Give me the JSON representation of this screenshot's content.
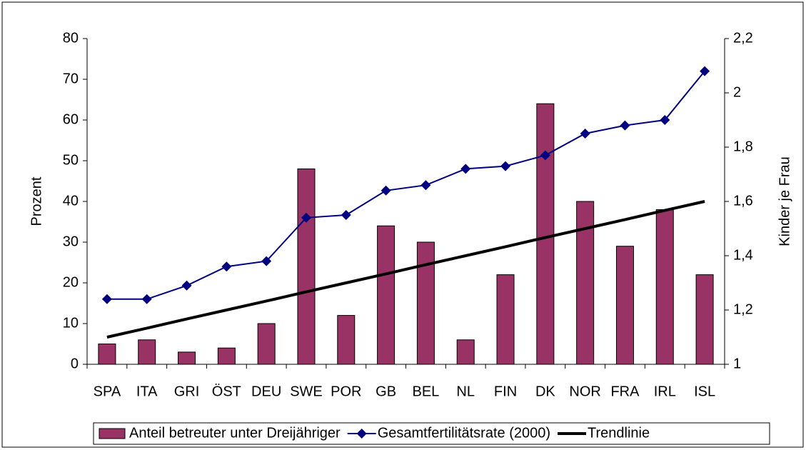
{
  "chart_data": {
    "type": "bar_line",
    "categories": [
      "SPA",
      "ITA",
      "GRI",
      "ÖST",
      "DEU",
      "SWE",
      "POR",
      "GB",
      "BEL",
      "NL",
      "FIN",
      "DK",
      "NOR",
      "FRA",
      "IRL",
      "ISL"
    ],
    "y_label": "Prozent",
    "y2_label": "Kinder je Frau",
    "ylim": [
      0,
      80
    ],
    "yticks": [
      0,
      10,
      20,
      30,
      40,
      50,
      60,
      70,
      80
    ],
    "y2lim": [
      1,
      2.2
    ],
    "y2ticks": [
      1,
      {
        "value": 1.2,
        "label": "1,2"
      },
      {
        "value": 1.4,
        "label": "1,4"
      },
      {
        "value": 1.6,
        "label": "1,6"
      },
      {
        "value": 1.8,
        "label": "1,8"
      },
      2,
      {
        "value": 2.2,
        "label": "2,2"
      }
    ],
    "series": [
      {
        "name": "Anteil betreuter unter Dreijähriger",
        "kind": "bar",
        "color": "#993366",
        "values": [
          5,
          6,
          3,
          4,
          10,
          48,
          12,
          34,
          30,
          6,
          22,
          64,
          40,
          29,
          38,
          22
        ]
      },
      {
        "name": "Gesamtfertilitätsrate (2000)",
        "kind": "line",
        "axis": "y2",
        "color": "#000080",
        "values": [
          1.24,
          1.24,
          1.29,
          1.36,
          1.38,
          1.54,
          1.55,
          1.64,
          1.66,
          1.72,
          1.73,
          1.77,
          1.85,
          1.88,
          1.9,
          2.08
        ]
      },
      {
        "name": "Trendlinie",
        "kind": "trend",
        "axis": "y2",
        "color": "#000000",
        "values": [
          1.1,
          1.133,
          1.167,
          1.2,
          1.233,
          1.267,
          1.3,
          1.333,
          1.367,
          1.4,
          1.433,
          1.467,
          1.5,
          1.533,
          1.567,
          1.6
        ]
      }
    ]
  }
}
